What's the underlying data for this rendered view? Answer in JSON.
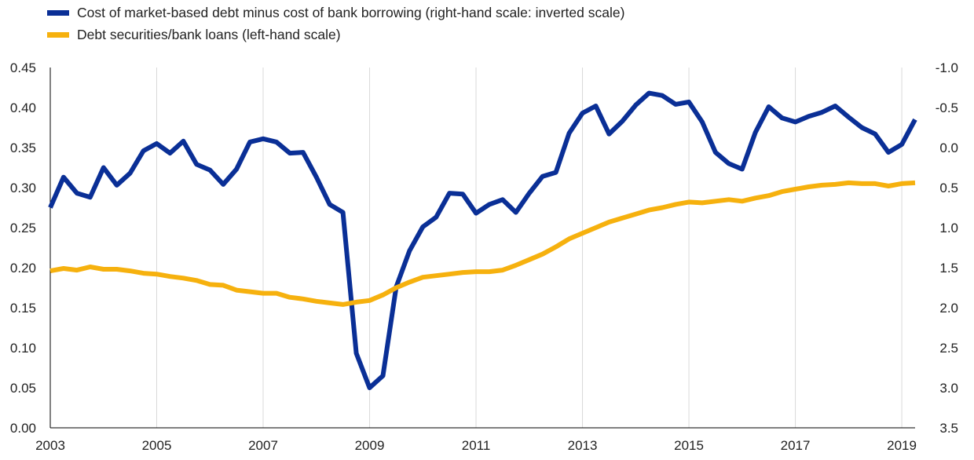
{
  "chart_data": {
    "type": "line",
    "xlim": [
      2003,
      2019.25
    ],
    "ylim_left": [
      0,
      0.45
    ],
    "ylim_right": [
      -1.0,
      3.5
    ],
    "right_axis_inverted": true,
    "grid": "vertical",
    "legend_position": "top-left",
    "x_ticks": [
      "2003",
      "2005",
      "2007",
      "2009",
      "2011",
      "2013",
      "2015",
      "2017",
      "2019"
    ],
    "y_left_ticks": [
      "0.00",
      "0.05",
      "0.10",
      "0.15",
      "0.20",
      "0.25",
      "0.30",
      "0.35",
      "0.40",
      "0.45"
    ],
    "y_right_ticks": [
      "-1.0",
      "-0.5",
      "0.0",
      "0.5",
      "1.0",
      "1.5",
      "2.0",
      "2.5",
      "3.0",
      "3.5"
    ],
    "series": [
      {
        "name": "Cost of market-based debt minus cost of bank borrowing (right-hand scale: inverted scale)",
        "axis": "right",
        "color": "#0a2f96",
        "x": [
          2003.0,
          2003.25,
          2003.5,
          2003.75,
          2004.0,
          2004.25,
          2004.5,
          2004.75,
          2005.0,
          2005.25,
          2005.5,
          2005.75,
          2006.0,
          2006.25,
          2006.5,
          2006.75,
          2007.0,
          2007.25,
          2007.5,
          2007.75,
          2008.0,
          2008.25,
          2008.5,
          2008.75,
          2009.0,
          2009.25,
          2009.5,
          2009.75,
          2010.0,
          2010.25,
          2010.5,
          2010.75,
          2011.0,
          2011.25,
          2011.5,
          2011.75,
          2012.0,
          2012.25,
          2012.5,
          2012.75,
          2013.0,
          2013.25,
          2013.5,
          2013.75,
          2014.0,
          2014.25,
          2014.5,
          2014.75,
          2015.0,
          2015.25,
          2015.5,
          2015.75,
          2016.0,
          2016.25,
          2016.5,
          2016.75,
          2017.0,
          2017.25,
          2017.5,
          2017.75,
          2018.0,
          2018.25,
          2018.5,
          2018.75,
          2019.0,
          2019.25
        ],
        "values": [
          0.75,
          0.37,
          0.57,
          0.62,
          0.25,
          0.47,
          0.32,
          0.04,
          -0.05,
          0.07,
          -0.08,
          0.21,
          0.28,
          0.46,
          0.27,
          -0.07,
          -0.11,
          -0.07,
          0.07,
          0.06,
          0.37,
          0.71,
          0.81,
          2.57,
          3.0,
          2.85,
          1.74,
          1.29,
          0.99,
          0.87,
          0.57,
          0.58,
          0.82,
          0.71,
          0.65,
          0.81,
          0.57,
          0.36,
          0.31,
          -0.18,
          -0.43,
          -0.52,
          -0.17,
          -0.33,
          -0.53,
          -0.68,
          -0.65,
          -0.54,
          -0.57,
          -0.32,
          0.06,
          0.2,
          0.27,
          -0.19,
          -0.51,
          -0.37,
          -0.32,
          -0.39,
          -0.44,
          -0.52,
          -0.38,
          -0.25,
          -0.17,
          0.06,
          -0.04,
          -0.35
        ]
      },
      {
        "name": "Debt securities/bank loans (left-hand scale)",
        "axis": "left",
        "color": "#f6b10e",
        "x": [
          2003.0,
          2003.25,
          2003.5,
          2003.75,
          2004.0,
          2004.25,
          2004.5,
          2004.75,
          2005.0,
          2005.25,
          2005.5,
          2005.75,
          2006.0,
          2006.25,
          2006.5,
          2006.75,
          2007.0,
          2007.25,
          2007.5,
          2007.75,
          2008.0,
          2008.25,
          2008.5,
          2008.75,
          2009.0,
          2009.25,
          2009.5,
          2009.75,
          2010.0,
          2010.25,
          2010.5,
          2010.75,
          2011.0,
          2011.25,
          2011.5,
          2011.75,
          2012.0,
          2012.25,
          2012.5,
          2012.75,
          2013.0,
          2013.25,
          2013.5,
          2013.75,
          2014.0,
          2014.25,
          2014.5,
          2014.75,
          2015.0,
          2015.25,
          2015.5,
          2015.75,
          2016.0,
          2016.25,
          2016.5,
          2016.75,
          2017.0,
          2017.25,
          2017.5,
          2017.75,
          2018.0,
          2018.25,
          2018.5,
          2018.75,
          2019.0,
          2019.25
        ],
        "values": [
          0.196,
          0.199,
          0.197,
          0.201,
          0.198,
          0.198,
          0.196,
          0.193,
          0.192,
          0.189,
          0.187,
          0.184,
          0.179,
          0.178,
          0.172,
          0.17,
          0.168,
          0.168,
          0.163,
          0.161,
          0.158,
          0.156,
          0.154,
          0.157,
          0.159,
          0.166,
          0.175,
          0.182,
          0.188,
          0.19,
          0.192,
          0.194,
          0.195,
          0.195,
          0.197,
          0.203,
          0.21,
          0.217,
          0.226,
          0.236,
          0.243,
          0.25,
          0.257,
          0.262,
          0.267,
          0.272,
          0.275,
          0.279,
          0.282,
          0.281,
          0.283,
          0.285,
          0.283,
          0.287,
          0.29,
          0.295,
          0.298,
          0.301,
          0.303,
          0.304,
          0.306,
          0.305,
          0.305,
          0.302,
          0.305,
          0.306
        ]
      }
    ]
  }
}
